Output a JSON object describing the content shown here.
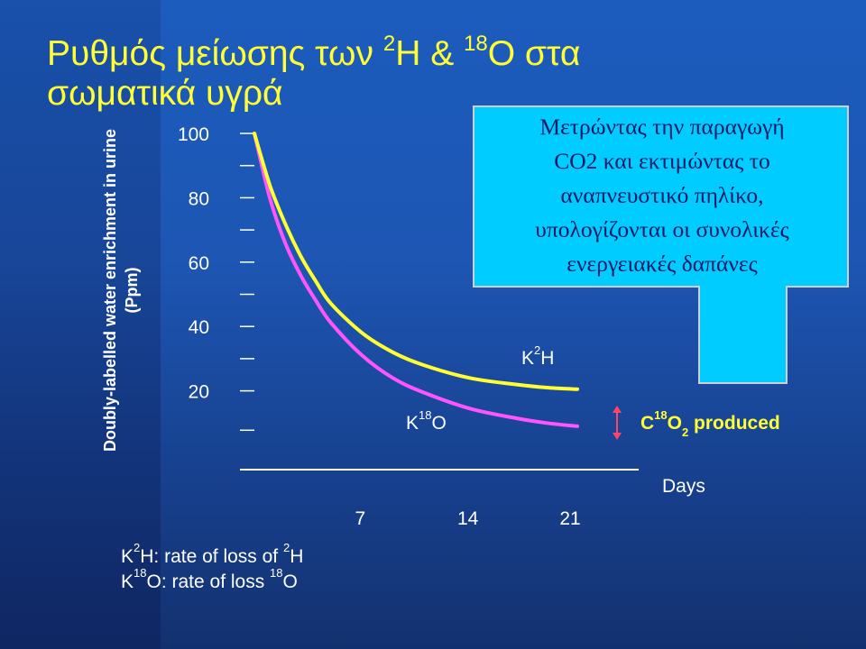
{
  "slide": {
    "title_part1": "Ρυθμός μείωσης των ",
    "title_sup1": "2",
    "title_part2": "Η & ",
    "title_sup2": "18",
    "title_part3": "Ο στα",
    "title_line2": "σωματικά υγρά"
  },
  "callout": {
    "lines": [
      "Μετρώντας την παραγωγή",
      "CO2 και εκτιμώντας το",
      "αναπνευστικό πηλίκο,",
      "υπολογίζονται οι συνολικές",
      "ενεργειακές δαπάνες"
    ],
    "fill": "#00ccff"
  },
  "labels": {
    "k2h_main": "K",
    "k2h_sup": "2",
    "k2h_tail": "H",
    "k18o_main": "K",
    "k18o_sup": "18",
    "k18o_tail": "O",
    "c18o2_main": "C",
    "c18o2_sup": "18",
    "c18o2_mid": "O",
    "c18o2_sub": "2",
    "c18o2_tail": " produced"
  },
  "legend": {
    "line1_a": "K",
    "line1_sup1": "2",
    "line1_b": "H: rate of loss of ",
    "line1_sup2": "2",
    "line1_c": "H",
    "line2_a": "K",
    "line2_sup1": "18",
    "line2_b": "O: rate of loss ",
    "line2_sup2": "18",
    "line2_c": "O"
  },
  "chart_data": {
    "type": "line",
    "ylabel_line1": "Doubly-labelled water enrichment in urine",
    "ylabel_line2": "(Ppm)",
    "xlabel": "Days",
    "y_ticks": [
      "20",
      "40",
      "60",
      "80",
      "100"
    ],
    "x_ticks": [
      "7",
      "14",
      "21"
    ],
    "y_tick_values": [
      20,
      40,
      60,
      80,
      100
    ],
    "x_tick_values": [
      7,
      14,
      21
    ],
    "ylim": [
      0,
      102
    ],
    "xlim": [
      0,
      35
    ],
    "series": [
      {
        "name": "K2H",
        "color": "#ffff33",
        "x": [
          0,
          1,
          2,
          3,
          4,
          5,
          7,
          9,
          11,
          14,
          17,
          19,
          21
        ],
        "y": [
          100,
          84,
          72,
          62,
          54,
          47,
          38,
          32,
          28,
          24,
          22,
          21,
          20.5
        ]
      },
      {
        "name": "K18O",
        "color": "#ff55ff",
        "x": [
          0,
          1,
          2,
          3,
          4,
          5,
          7,
          9,
          11,
          14,
          17,
          19,
          21
        ],
        "y": [
          100,
          80,
          66,
          56,
          48,
          41,
          31,
          24,
          19.5,
          14.5,
          11.5,
          10,
          9
        ]
      }
    ],
    "grid": false,
    "annotation": {
      "x": 0,
      "y_from": 9,
      "y_to": 20.5,
      "label": "C18O2 produced"
    }
  }
}
